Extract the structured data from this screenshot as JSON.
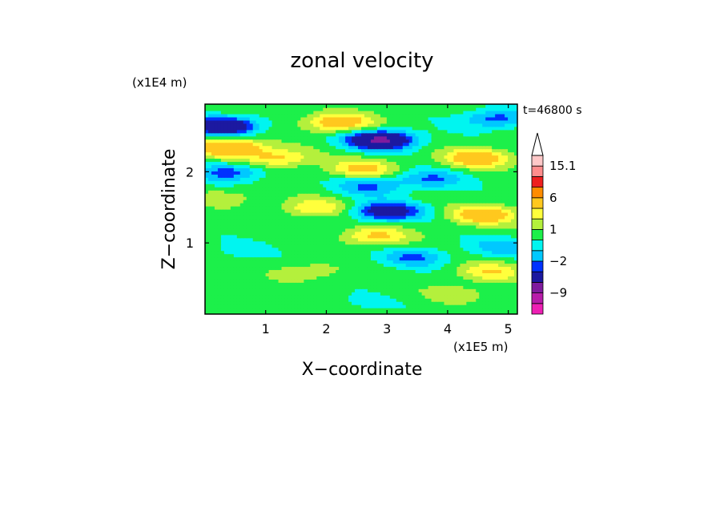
{
  "chart_data": {
    "type": "heatmap",
    "title": "zonal velocity",
    "xlabel": "X−coordinate",
    "ylabel": "Z−coordinate",
    "x_unit": "(x1E5 m)",
    "y_unit": "(x1E4 m)",
    "time_label": "t=46800 s",
    "xlim": [
      0,
      5.15
    ],
    "ylim": [
      0,
      2.95
    ],
    "x_ticks": [
      1,
      2,
      3,
      4,
      5
    ],
    "y_ticks": [
      1,
      2
    ],
    "x_tick_labels": [
      "1",
      "2",
      "3",
      "4",
      "5"
    ],
    "y_tick_labels": [
      "1",
      "2"
    ],
    "colorbar": {
      "levels": [
        -15.1,
        -12,
        -9,
        -6,
        -3,
        -2,
        -1,
        0,
        1,
        2,
        3,
        6,
        9,
        12,
        15.1
      ],
      "colors": [
        "#ee1fb4",
        "#b81caa",
        "#7f1b9e",
        "#1c19a0",
        "#0032ff",
        "#00c8ff",
        "#00f5f0",
        "#1cf04a",
        "#b4f03c",
        "#ffff3c",
        "#ffc81e",
        "#ff8c00",
        "#ee1f1f",
        "#ff8c8c",
        "#ffc8c8"
      ],
      "tick_labels": [
        {
          "level": 15.1,
          "text": "15.1"
        },
        {
          "level": 6,
          "text": "6"
        },
        {
          "level": 1,
          "text": "1"
        },
        {
          "level": -2,
          "text": "−2"
        },
        {
          "level": -9,
          "text": "−9"
        }
      ],
      "extend": "max"
    },
    "features": [
      {
        "x": 2.9,
        "z": 2.45,
        "value": -7
      },
      {
        "x": 0.3,
        "z": 2.65,
        "value": -6
      },
      {
        "x": 3.0,
        "z": 1.45,
        "value": -5
      },
      {
        "x": 0.4,
        "z": 2.35,
        "value": 5
      },
      {
        "x": 4.6,
        "z": 1.4,
        "value": 4
      },
      {
        "x": 2.2,
        "z": 2.7,
        "value": 4
      },
      {
        "x": 4.5,
        "z": 2.2,
        "value": 4
      },
      {
        "x": 0.4,
        "z": 2.0,
        "value": -3
      },
      {
        "x": 4.8,
        "z": 2.75,
        "value": -3
      },
      {
        "x": 1.2,
        "z": 2.2,
        "value": 3
      },
      {
        "x": 2.6,
        "z": 2.05,
        "value": 3
      },
      {
        "x": 2.8,
        "z": 1.1,
        "value": 3
      },
      {
        "x": 1.8,
        "z": 1.5,
        "value": 2.5
      },
      {
        "x": 3.7,
        "z": 1.9,
        "value": -2.5
      },
      {
        "x": 2.7,
        "z": 1.8,
        "value": -2.5
      },
      {
        "x": 4.7,
        "z": 0.6,
        "value": 2.5
      },
      {
        "x": 4.9,
        "z": 0.95,
        "value": -2
      },
      {
        "x": 3.45,
        "z": 0.8,
        "value": -2.5
      },
      {
        "x": 0.6,
        "z": 0.9,
        "value": -0.8
      },
      {
        "x": 2.5,
        "z": 0.15,
        "value": -0.6
      },
      {
        "x": 1.7,
        "z": 0.6,
        "value": 1.5
      },
      {
        "x": 0.4,
        "z": 1.65,
        "value": 1.2
      },
      {
        "x": 4.2,
        "z": 0.3,
        "value": 1.2
      }
    ]
  }
}
